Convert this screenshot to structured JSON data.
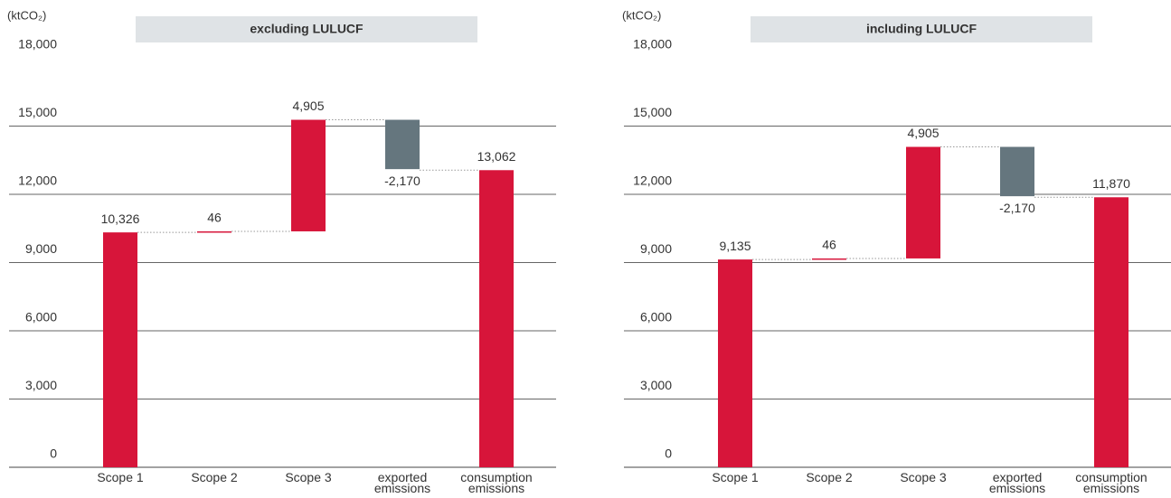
{
  "chart_data": [
    {
      "type": "waterfall",
      "title": "excluding LULUCF",
      "y_label": "(ktCO₂)",
      "categories": [
        "Scope 1",
        "Scope 2",
        "Scope 3",
        "exported emissions",
        "consumption emissions"
      ],
      "measure": [
        "relative",
        "relative",
        "relative",
        "relative",
        "total"
      ],
      "values": [
        10326,
        46,
        4905,
        -2170,
        13062
      ],
      "value_labels": [
        "10,326",
        "46",
        "4,905",
        "-2,170",
        "13,062"
      ],
      "colors": [
        "#d7153a",
        "#d7153a",
        "#d7153a",
        "#65767e",
        "#d7153a"
      ],
      "ylim": [
        0,
        18000
      ],
      "yticks": [
        0,
        {
          "value": 3000,
          "label": "3,000"
        },
        {
          "value": 6000,
          "label": "6,000"
        },
        {
          "value": 9000,
          "label": "9,000"
        },
        {
          "value": 12000,
          "label": "12,000"
        },
        {
          "value": 15000,
          "label": "15,000"
        },
        {
          "value": 18000,
          "label": "18,000"
        }
      ]
    },
    {
      "type": "waterfall",
      "title": "including LULUCF",
      "y_label": "(ktCO₂)",
      "categories": [
        "Scope 1",
        "Scope 2",
        "Scope 3",
        "exported emissions",
        "consumption emissions"
      ],
      "measure": [
        "relative",
        "relative",
        "relative",
        "relative",
        "total"
      ],
      "values": [
        9135,
        46,
        4905,
        -2170,
        11870
      ],
      "value_labels": [
        "9,135",
        "46",
        "4,905",
        "-2,170",
        "11,870"
      ],
      "colors": [
        "#d7153a",
        "#d7153a",
        "#d7153a",
        "#65767e",
        "#d7153a"
      ],
      "ylim": [
        0,
        18000
      ],
      "yticks": [
        0,
        {
          "value": 3000,
          "label": "3,000"
        },
        {
          "value": 6000,
          "label": "6,000"
        },
        {
          "value": 9000,
          "label": "9,000"
        },
        {
          "value": 12000,
          "label": "12,000"
        },
        {
          "value": 15000,
          "label": "15,000"
        },
        {
          "value": 18000,
          "label": "18,000"
        }
      ]
    }
  ]
}
